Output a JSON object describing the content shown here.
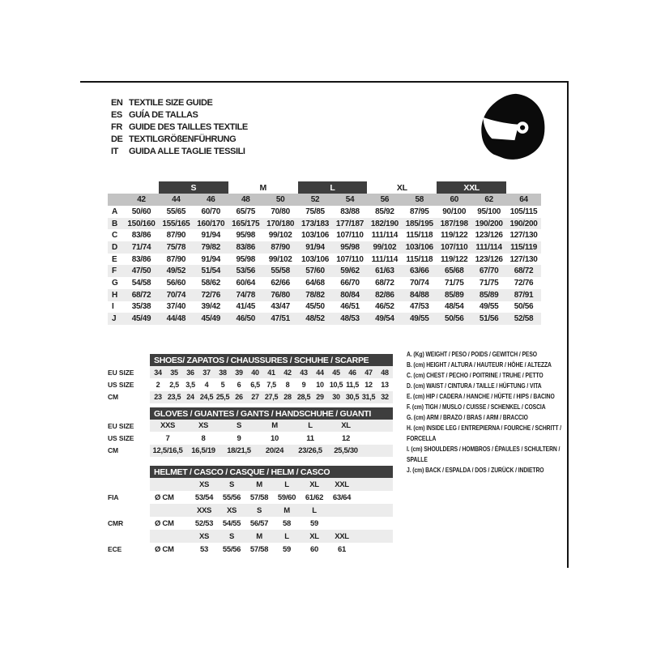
{
  "colors": {
    "dark_bar": "#3e3e3e",
    "size_band_gray": "#c3c3c3",
    "row_stripe_gray": "#ececec",
    "frame_line": "#141414",
    "text": "#1d1d1d",
    "icon_black": "#0b0b0b"
  },
  "header": {
    "languages": [
      {
        "code": "EN",
        "text": "TEXTILE SIZE GUIDE"
      },
      {
        "code": "ES",
        "text": "GUÍA DE TALLAS"
      },
      {
        "code": "FR",
        "text": "GUIDE DES TAILLES TEXTILE"
      },
      {
        "code": "DE",
        "text": "TEXTILGRÖßENFÜHRUNG"
      },
      {
        "code": "IT",
        "text": "GUIDA ALLE TAGLIE TESSILI"
      }
    ],
    "icon": "full-face-racing-helmet"
  },
  "size_table": {
    "size_groups": [
      {
        "label": "S",
        "dark": true
      },
      {
        "label": "M",
        "dark": false
      },
      {
        "label": "L",
        "dark": true
      },
      {
        "label": "XL",
        "dark": false
      },
      {
        "label": "XXL",
        "dark": true
      }
    ],
    "numeric_sizes": [
      "42",
      "44",
      "46",
      "48",
      "50",
      "52",
      "54",
      "56",
      "58",
      "60",
      "62",
      "64"
    ],
    "rows": [
      {
        "key": "A",
        "values": [
          "50/60",
          "55/65",
          "60/70",
          "65/75",
          "70/80",
          "75/85",
          "83/88",
          "85/92",
          "87/95",
          "90/100",
          "95/100",
          "105/115"
        ]
      },
      {
        "key": "B",
        "values": [
          "150/160",
          "155/165",
          "160/170",
          "165/175",
          "170/180",
          "173/183",
          "177/187",
          "182/190",
          "185/195",
          "187/198",
          "190/200",
          "190/200"
        ]
      },
      {
        "key": "C",
        "values": [
          "83/86",
          "87/90",
          "91/94",
          "95/98",
          "99/102",
          "103/106",
          "107/110",
          "111/114",
          "115/118",
          "119/122",
          "123/126",
          "127/130"
        ]
      },
      {
        "key": "D",
        "values": [
          "71/74",
          "75/78",
          "79/82",
          "83/86",
          "87/90",
          "91/94",
          "95/98",
          "99/102",
          "103/106",
          "107/110",
          "111/114",
          "115/119"
        ]
      },
      {
        "key": "E",
        "values": [
          "83/86",
          "87/90",
          "91/94",
          "95/98",
          "99/102",
          "103/106",
          "107/110",
          "111/114",
          "115/118",
          "119/122",
          "123/126",
          "127/130"
        ]
      },
      {
        "key": "F",
        "values": [
          "47/50",
          "49/52",
          "51/54",
          "53/56",
          "55/58",
          "57/60",
          "59/62",
          "61/63",
          "63/66",
          "65/68",
          "67/70",
          "68/72"
        ]
      },
      {
        "key": "G",
        "values": [
          "54/58",
          "56/60",
          "58/62",
          "60/64",
          "62/66",
          "64/68",
          "66/70",
          "68/72",
          "70/74",
          "71/75",
          "71/75",
          "72/76"
        ]
      },
      {
        "key": "H",
        "values": [
          "68/72",
          "70/74",
          "72/76",
          "74/78",
          "76/80",
          "78/82",
          "80/84",
          "82/86",
          "84/88",
          "85/89",
          "85/89",
          "87/91"
        ]
      },
      {
        "key": "I",
        "values": [
          "35/38",
          "37/40",
          "39/42",
          "41/45",
          "43/47",
          "45/50",
          "46/51",
          "46/52",
          "47/53",
          "48/54",
          "49/55",
          "50/56"
        ]
      },
      {
        "key": "J",
        "values": [
          "45/49",
          "44/48",
          "45/49",
          "46/50",
          "47/51",
          "48/52",
          "48/53",
          "49/54",
          "49/55",
          "50/56",
          "51/56",
          "52/58"
        ]
      }
    ]
  },
  "shoes_table": {
    "title": "SHOES/ ZAPATOS / CHAUSSURES / SCHUHE / SCARPE",
    "rows": [
      {
        "label": "EU SIZE",
        "values": [
          "34",
          "35",
          "36",
          "37",
          "38",
          "39",
          "40",
          "41",
          "42",
          "43",
          "44",
          "45",
          "46",
          "47",
          "48"
        ]
      },
      {
        "label": "US SIZE",
        "values": [
          "2",
          "2,5",
          "3,5",
          "4",
          "5",
          "6",
          "6,5",
          "7,5",
          "8",
          "9",
          "10",
          "10,5",
          "11,5",
          "12",
          "13"
        ]
      },
      {
        "label": "CM",
        "values": [
          "23",
          "23,5",
          "24",
          "24,5",
          "25,5",
          "26",
          "27",
          "27,5",
          "28",
          "28,5",
          "29",
          "30",
          "30,5",
          "31,5",
          "32"
        ]
      }
    ]
  },
  "gloves_table": {
    "title": "GLOVES / GUANTES / GANTS / HANDSCHUHE / GUANTI",
    "rows": [
      {
        "label": "EU SIZE",
        "values": [
          "XXS",
          "XS",
          "S",
          "M",
          "L",
          "XL"
        ]
      },
      {
        "label": "US SIZE",
        "values": [
          "7",
          "8",
          "9",
          "10",
          "11",
          "12"
        ]
      },
      {
        "label": "CM",
        "values": [
          "12,5/16,5",
          "16,5/19",
          "18/21,5",
          "20/24",
          "23/26,5",
          "25,5/30"
        ]
      }
    ]
  },
  "helmet_table": {
    "title": "HELMET / CASCO / CASQUE / HELM / CASCO",
    "sections": [
      {
        "label": "FIA",
        "unit": "Ø CM",
        "sizes": [
          "XS",
          "S",
          "M",
          "L",
          "XL",
          "XXL"
        ],
        "values": [
          "53/54",
          "55/56",
          "57/58",
          "59/60",
          "61/62",
          "63/64"
        ]
      },
      {
        "label": "CMR",
        "unit": "Ø CM",
        "sizes": [
          "XXS",
          "XS",
          "S",
          "M",
          "L"
        ],
        "values": [
          "52/53",
          "54/55",
          "56/57",
          "58",
          "59"
        ]
      },
      {
        "label": "ECE",
        "unit": "Ø CM",
        "sizes": [
          "XS",
          "S",
          "M",
          "L",
          "XL",
          "XXL"
        ],
        "values": [
          "53",
          "55/56",
          "57/58",
          "59",
          "60",
          "61"
        ]
      }
    ]
  },
  "legend": {
    "items": [
      "A. (Kg) WEIGHT / PESO / POIDS / GEWITCH / PESO",
      "B. (cm) HEIGHT / ALTURA / HAUTEUR / HÖHE / ALTEZZA",
      "C. (cm) CHEST / PECHO / POITRINE / TRUHE / PETTO",
      "D. (cm) WAIST / CINTURA / TAILLE / HÜFTUNG / VITA",
      "E. (cm) HIP / CADERA / HANCHE / HÜFTE / HIPS / BACINO",
      "F. (cm) TIGH / MUSLO / CUISSE / SCHENKEL / COSCIA",
      "G. (cm) ARM / BRAZO / BRAS / ARM / BRACCIO",
      "H. (cm) INSIDE LEG / ENTREPIERNA / FOURCHE / SCHRITT / FORCELLA",
      "I. (cm) SHOULDERS / HOMBROS / ÉPAULES / SCHULTERN / SPALLE",
      "J. (cm) BACK / ESPALDA / DOS / ZURÜCK / INDIETRO"
    ]
  }
}
